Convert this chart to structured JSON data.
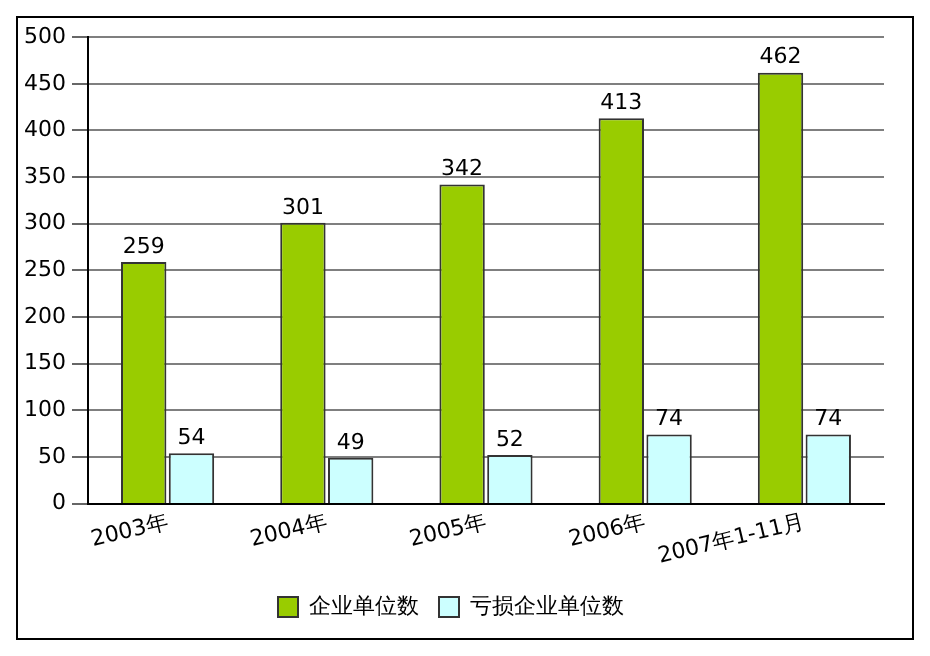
{
  "chart_data": {
    "type": "bar",
    "categories": [
      "2003年",
      "2004年",
      "2005年",
      "2006年",
      "2007年1-11月"
    ],
    "series": [
      {
        "name": "企业单位数",
        "color": "#99cc00",
        "values": [
          259,
          301,
          342,
          413,
          462
        ]
      },
      {
        "name": "亏损企业单位数",
        "color": "#ccffff",
        "values": [
          54,
          49,
          52,
          74,
          74
        ]
      }
    ],
    "ylim": [
      0,
      500
    ],
    "yticks": [
      0,
      50,
      100,
      150,
      200,
      250,
      300,
      350,
      400,
      450,
      500
    ],
    "grid": "y",
    "legend": "bottom",
    "data_labels": true
  }
}
